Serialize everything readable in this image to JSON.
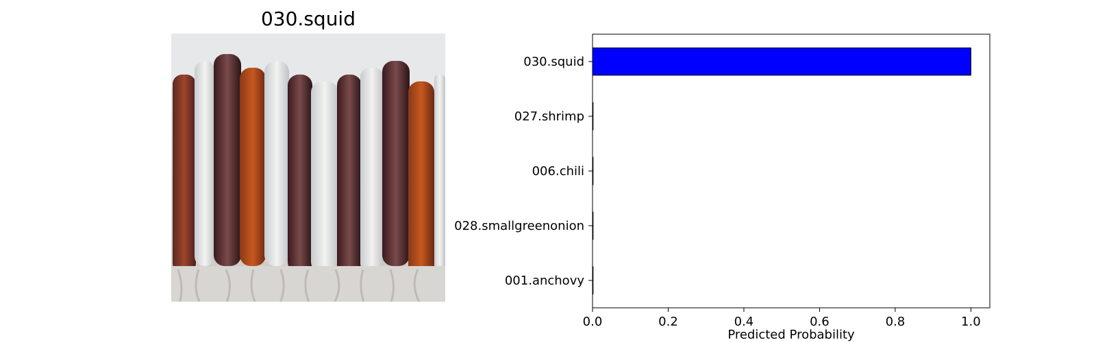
{
  "image_panel": {
    "title": "030.squid"
  },
  "chart_data": {
    "type": "bar",
    "orientation": "horizontal",
    "categories": [
      "030.squid",
      "027.shrimp",
      "006.chili",
      "028.smallgreenonion",
      "001.anchovy"
    ],
    "values": [
      1.0,
      0.0,
      0.0,
      0.0,
      0.0
    ],
    "title": "",
    "xlabel": "Predicted Probability",
    "ylabel": "",
    "xlim": [
      0,
      1.05
    ],
    "xticks": [
      "0.0",
      "0.2",
      "0.4",
      "0.6",
      "0.8",
      "1.0"
    ],
    "grid": false,
    "bar_color": "#0000ff",
    "bar_edge_color": "#000000"
  }
}
